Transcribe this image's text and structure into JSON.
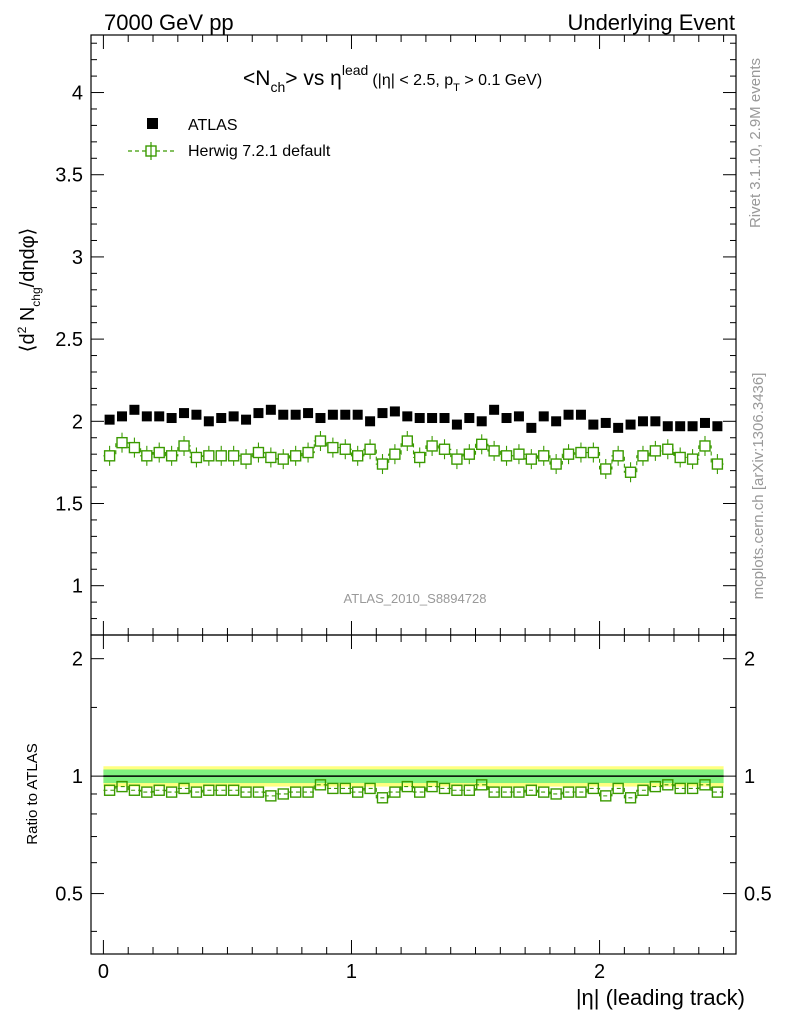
{
  "header": {
    "left": "7000 GeV pp",
    "right": "Underlying Event"
  },
  "title": {
    "main": "<N",
    "main_sub": "ch",
    "main_after": "> vs η",
    "main_sup": "lead",
    "cuts": "(|η| < 2.5, p",
    "cuts_sub": "T",
    "cuts_after": " > 0.1 GeV)"
  },
  "side_labels": {
    "rivet": "Rivet 3.1.10,  2.9M events",
    "mcplots": "mcplots.cern.ch [arXiv:1306.3436]"
  },
  "watermark": "ATLAS_2010_S8894728",
  "chart_data": [
    {
      "type": "scatter",
      "panel": "main",
      "ylabel": "⟨d² N_chg/dηdφ⟩",
      "ylim": [
        0.7,
        4.35
      ],
      "xlim": [
        -0.05,
        2.55
      ],
      "yticks": [
        "1",
        "1.5",
        "2",
        "2.5",
        "3",
        "3.5",
        "4"
      ],
      "legend_position": "top-left",
      "x": [
        0.025,
        0.075,
        0.125,
        0.175,
        0.225,
        0.275,
        0.325,
        0.375,
        0.425,
        0.475,
        0.525,
        0.575,
        0.625,
        0.675,
        0.725,
        0.775,
        0.825,
        0.875,
        0.925,
        0.975,
        1.025,
        1.075,
        1.125,
        1.175,
        1.225,
        1.275,
        1.325,
        1.375,
        1.425,
        1.475,
        1.525,
        1.575,
        1.625,
        1.675,
        1.725,
        1.775,
        1.825,
        1.875,
        1.925,
        1.975,
        2.025,
        2.075,
        2.125,
        2.175,
        2.225,
        2.275,
        2.325,
        2.375,
        2.425,
        2.475
      ],
      "series": [
        {
          "name": "ATLAS",
          "color": "#000000",
          "marker": "filled-square",
          "values": [
            2.01,
            2.03,
            2.07,
            2.03,
            2.03,
            2.02,
            2.05,
            2.04,
            2.0,
            2.02,
            2.03,
            2.01,
            2.05,
            2.07,
            2.04,
            2.04,
            2.05,
            2.02,
            2.04,
            2.04,
            2.04,
            2.0,
            2.05,
            2.06,
            2.03,
            2.02,
            2.02,
            2.02,
            1.98,
            2.02,
            2.0,
            2.07,
            2.02,
            2.03,
            1.96,
            2.03,
            2.0,
            2.04,
            2.04,
            1.98,
            1.99,
            1.96,
            1.98,
            2.0,
            2.0,
            1.97,
            1.97,
            1.97,
            1.99,
            1.97
          ]
        },
        {
          "name": "Herwig 7.2.1 default",
          "color": "#3a9a00",
          "marker": "open-square-dashed",
          "values": [
            1.79,
            1.87,
            1.84,
            1.79,
            1.81,
            1.79,
            1.85,
            1.78,
            1.79,
            1.79,
            1.79,
            1.77,
            1.81,
            1.78,
            1.77,
            1.79,
            1.81,
            1.88,
            1.84,
            1.83,
            1.79,
            1.83,
            1.74,
            1.8,
            1.88,
            1.78,
            1.85,
            1.83,
            1.77,
            1.8,
            1.86,
            1.82,
            1.79,
            1.8,
            1.77,
            1.79,
            1.74,
            1.8,
            1.81,
            1.81,
            1.71,
            1.79,
            1.69,
            1.79,
            1.82,
            1.83,
            1.78,
            1.77,
            1.85,
            1.74
          ]
        }
      ]
    },
    {
      "type": "scatter",
      "panel": "ratio",
      "ylabel": "Ratio to ATLAS",
      "xlabel": "|η| (leading track)",
      "ylim": [
        0.35,
        2.3
      ],
      "xlim": [
        -0.05,
        2.55
      ],
      "yticks": [
        "0.5",
        "1",
        "2"
      ],
      "xticks": [
        "0",
        "1",
        "2"
      ],
      "reference_line": 1.0,
      "band_inner": 0.04,
      "band_outer": 0.06,
      "series": [
        {
          "name": "Herwig 7.2.1 default",
          "color": "#3a9a00",
          "values": [
            0.92,
            0.94,
            0.92,
            0.91,
            0.92,
            0.91,
            0.93,
            0.91,
            0.92,
            0.92,
            0.92,
            0.91,
            0.91,
            0.89,
            0.9,
            0.91,
            0.91,
            0.95,
            0.93,
            0.93,
            0.91,
            0.93,
            0.88,
            0.91,
            0.94,
            0.91,
            0.94,
            0.93,
            0.92,
            0.92,
            0.95,
            0.91,
            0.91,
            0.91,
            0.92,
            0.91,
            0.9,
            0.91,
            0.91,
            0.93,
            0.89,
            0.93,
            0.88,
            0.92,
            0.94,
            0.95,
            0.93,
            0.93,
            0.95,
            0.91
          ]
        }
      ]
    }
  ]
}
